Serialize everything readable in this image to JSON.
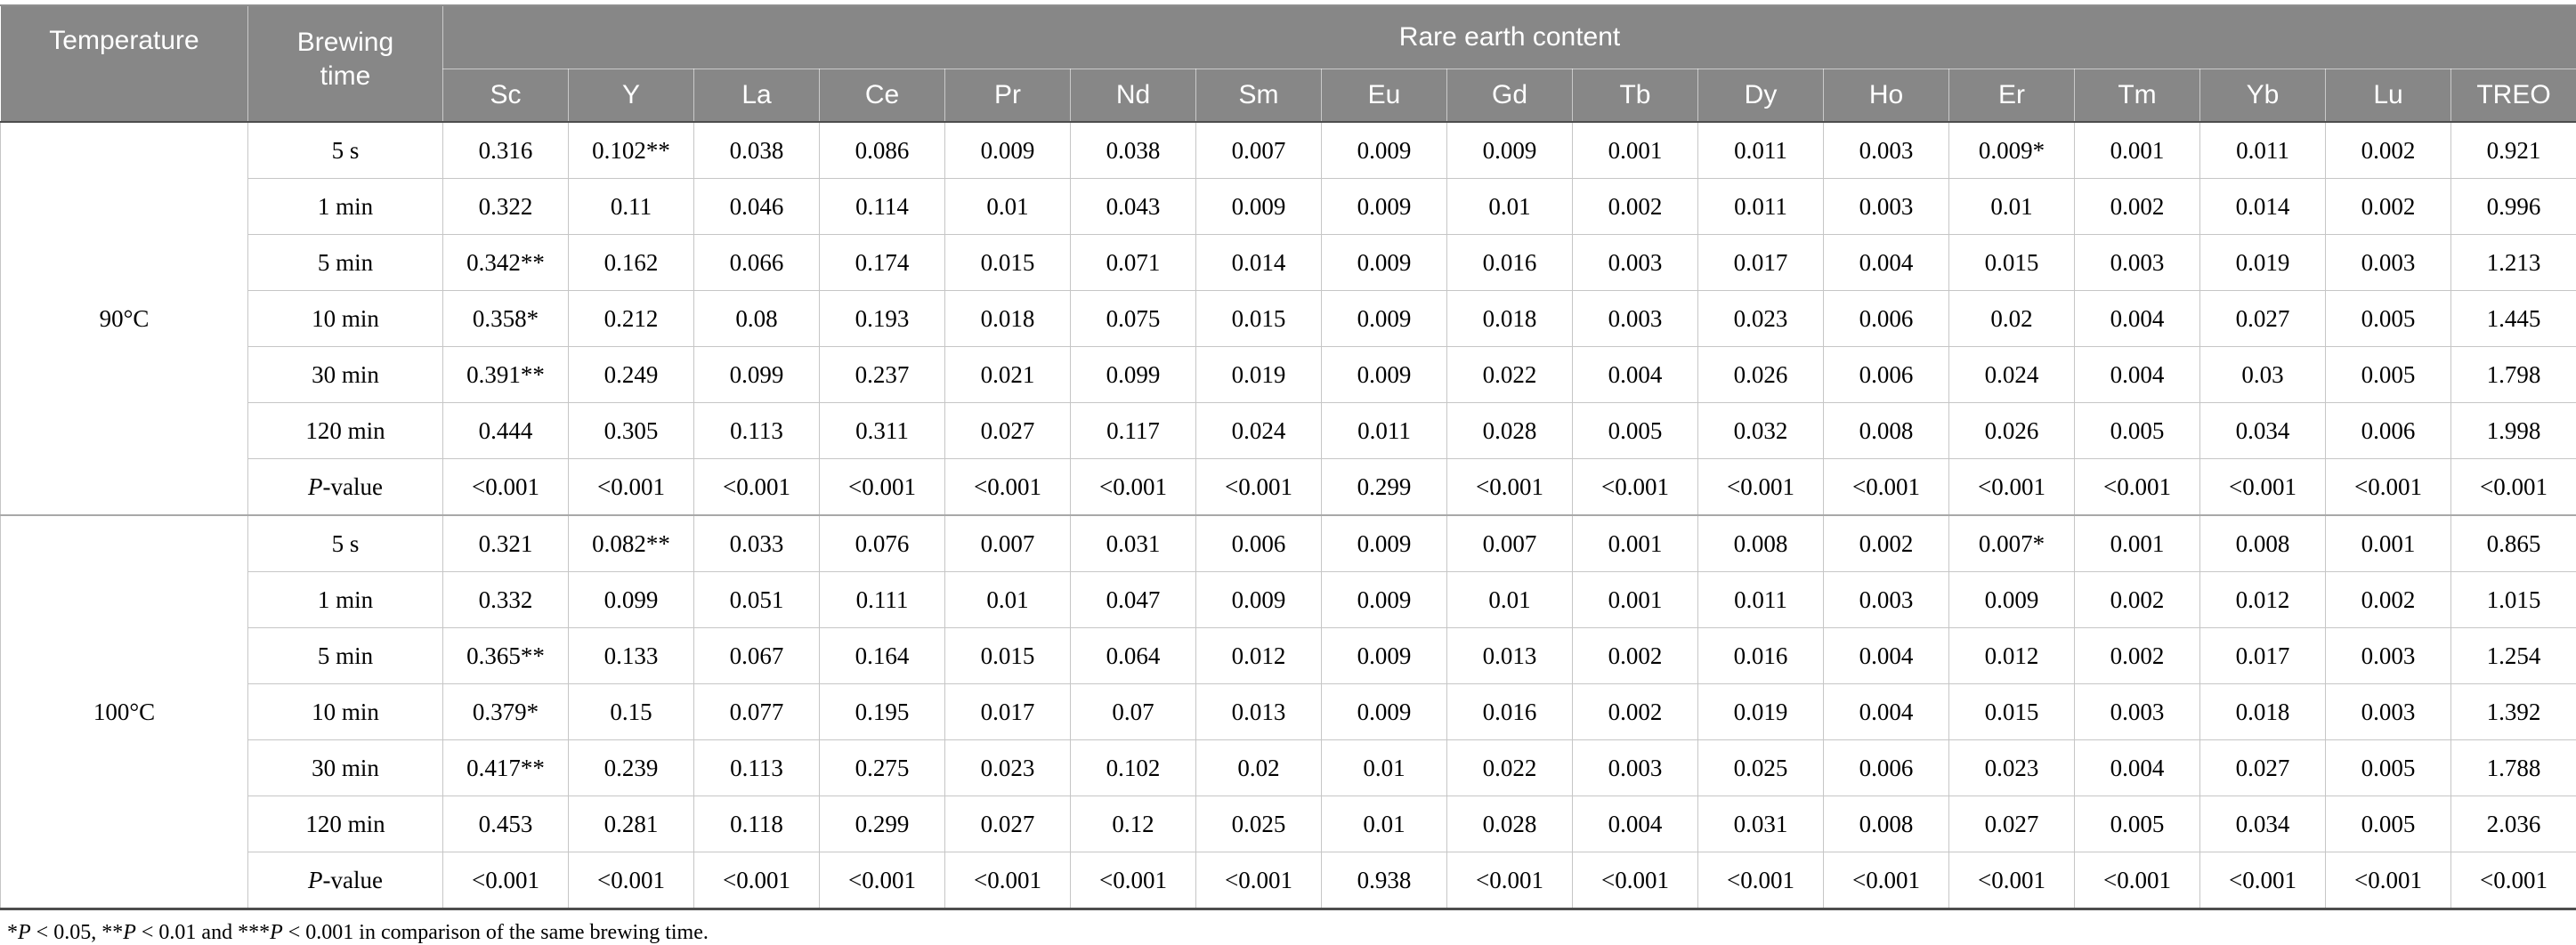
{
  "header": {
    "temperature": "Temperature",
    "brewing_time": "Brewing time",
    "group": "Rare earth content",
    "elements": [
      "Sc",
      "Y",
      "La",
      "Ce",
      "Pr",
      "Nd",
      "Sm",
      "Eu",
      "Gd",
      "Tb",
      "Dy",
      "Ho",
      "Er",
      "Tm",
      "Yb",
      "Lu",
      "TREO"
    ]
  },
  "sections": [
    {
      "temperature": "90°C",
      "rows": [
        {
          "time": "5 s",
          "values": [
            "0.316",
            "0.102**",
            "0.038",
            "0.086",
            "0.009",
            "0.038",
            "0.007",
            "0.009",
            "0.009",
            "0.001",
            "0.011",
            "0.003",
            "0.009*",
            "0.001",
            "0.011",
            "0.002",
            "0.921"
          ]
        },
        {
          "time": "1 min",
          "values": [
            "0.322",
            "0.11",
            "0.046",
            "0.114",
            "0.01",
            "0.043",
            "0.009",
            "0.009",
            "0.01",
            "0.002",
            "0.011",
            "0.003",
            "0.01",
            "0.002",
            "0.014",
            "0.002",
            "0.996"
          ]
        },
        {
          "time": "5 min",
          "values": [
            "0.342**",
            "0.162",
            "0.066",
            "0.174",
            "0.015",
            "0.071",
            "0.014",
            "0.009",
            "0.016",
            "0.003",
            "0.017",
            "0.004",
            "0.015",
            "0.003",
            "0.019",
            "0.003",
            "1.213"
          ]
        },
        {
          "time": "10 min",
          "values": [
            "0.358*",
            "0.212",
            "0.08",
            "0.193",
            "0.018",
            "0.075",
            "0.015",
            "0.009",
            "0.018",
            "0.003",
            "0.023",
            "0.006",
            "0.02",
            "0.004",
            "0.027",
            "0.005",
            "1.445"
          ]
        },
        {
          "time": "30 min",
          "values": [
            "0.391**",
            "0.249",
            "0.099",
            "0.237",
            "0.021",
            "0.099",
            "0.019",
            "0.009",
            "0.022",
            "0.004",
            "0.026",
            "0.006",
            "0.024",
            "0.004",
            "0.03",
            "0.005",
            "1.798"
          ]
        },
        {
          "time": "120 min",
          "values": [
            "0.444",
            "0.305",
            "0.113",
            "0.311",
            "0.027",
            "0.117",
            "0.024",
            "0.011",
            "0.028",
            "0.005",
            "0.032",
            "0.008",
            "0.026",
            "0.005",
            "0.034",
            "0.006",
            "1.998"
          ]
        },
        {
          "time": "P-value",
          "italic_p": true,
          "values": [
            "<0.001",
            "<0.001",
            "<0.001",
            "<0.001",
            "<0.001",
            "<0.001",
            "<0.001",
            "0.299",
            "<0.001",
            "<0.001",
            "<0.001",
            "<0.001",
            "<0.001",
            "<0.001",
            "<0.001",
            "<0.001",
            "<0.001"
          ]
        }
      ]
    },
    {
      "temperature": "100°C",
      "rows": [
        {
          "time": "5 s",
          "values": [
            "0.321",
            "0.082**",
            "0.033",
            "0.076",
            "0.007",
            "0.031",
            "0.006",
            "0.009",
            "0.007",
            "0.001",
            "0.008",
            "0.002",
            "0.007*",
            "0.001",
            "0.008",
            "0.001",
            "0.865"
          ]
        },
        {
          "time": "1 min",
          "values": [
            "0.332",
            "0.099",
            "0.051",
            "0.111",
            "0.01",
            "0.047",
            "0.009",
            "0.009",
            "0.01",
            "0.001",
            "0.011",
            "0.003",
            "0.009",
            "0.002",
            "0.012",
            "0.002",
            "1.015"
          ]
        },
        {
          "time": "5 min",
          "values": [
            "0.365**",
            "0.133",
            "0.067",
            "0.164",
            "0.015",
            "0.064",
            "0.012",
            "0.009",
            "0.013",
            "0.002",
            "0.016",
            "0.004",
            "0.012",
            "0.002",
            "0.017",
            "0.003",
            "1.254"
          ]
        },
        {
          "time": "10 min",
          "values": [
            "0.379*",
            "0.15",
            "0.077",
            "0.195",
            "0.017",
            "0.07",
            "0.013",
            "0.009",
            "0.016",
            "0.002",
            "0.019",
            "0.004",
            "0.015",
            "0.003",
            "0.018",
            "0.003",
            "1.392"
          ]
        },
        {
          "time": "30 min",
          "values": [
            "0.417**",
            "0.239",
            "0.113",
            "0.275",
            "0.023",
            "0.102",
            "0.02",
            "0.01",
            "0.022",
            "0.003",
            "0.025",
            "0.006",
            "0.023",
            "0.004",
            "0.027",
            "0.005",
            "1.788"
          ]
        },
        {
          "time": "120 min",
          "values": [
            "0.453",
            "0.281",
            "0.118",
            "0.299",
            "0.027",
            "0.12",
            "0.025",
            "0.01",
            "0.028",
            "0.004",
            "0.031",
            "0.008",
            "0.027",
            "0.005",
            "0.034",
            "0.005",
            "2.036"
          ]
        },
        {
          "time": "P-value",
          "italic_p": true,
          "values": [
            "<0.001",
            "<0.001",
            "<0.001",
            "<0.001",
            "<0.001",
            "<0.001",
            "<0.001",
            "0.938",
            "<0.001",
            "<0.001",
            "<0.001",
            "<0.001",
            "<0.001",
            "<0.001",
            "<0.001",
            "<0.001",
            "<0.001"
          ]
        }
      ]
    }
  ],
  "footnote": "*P < 0.05, **P < 0.01 and ***P < 0.001 in comparison of the same brewing time.",
  "colors": {
    "header_bg": "#878787",
    "header_text": "#ffffff",
    "grid_line": "#c6c6c6",
    "strong_line": "#4d4d4d",
    "section_line": "#a8a8a8",
    "body_text": "#000000"
  }
}
